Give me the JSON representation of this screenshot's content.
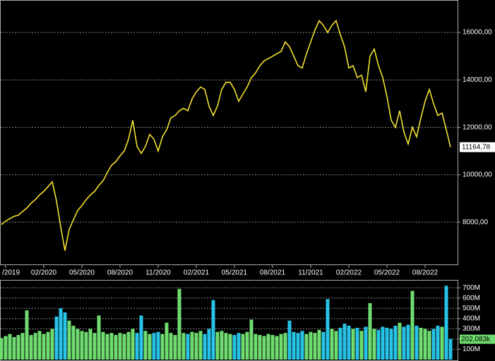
{
  "chart_data": [
    {
      "type": "line",
      "color": "#f2e22e",
      "categories": [
        null,
        "/2019",
        null,
        null,
        null,
        null,
        null,
        null,
        null,
        null,
        "02/2020",
        null,
        null,
        null,
        null,
        null,
        null,
        null,
        null,
        "05/2020",
        null,
        null,
        null,
        null,
        null,
        null,
        null,
        null,
        "08/2020",
        null,
        null,
        null,
        null,
        null,
        null,
        null,
        null,
        "11/2020",
        null,
        null,
        null,
        null,
        null,
        null,
        null,
        null,
        "02/2021",
        null,
        null,
        null,
        null,
        null,
        null,
        null,
        null,
        "05/2021",
        null,
        null,
        null,
        null,
        null,
        null,
        null,
        null,
        "08/2021",
        null,
        null,
        null,
        null,
        null,
        null,
        null,
        null,
        "11/2021",
        null,
        null,
        null,
        null,
        null,
        null,
        null,
        null,
        "02/2022",
        null,
        null,
        null,
        null,
        null,
        null,
        null,
        null,
        "05/2022",
        null,
        null,
        null,
        null,
        null,
        null,
        null,
        null,
        "08/2022",
        null,
        null,
        null,
        null,
        null,
        null
      ],
      "values": [
        7900,
        8050,
        8150,
        8250,
        8300,
        8450,
        8600,
        8800,
        8950,
        9150,
        9300,
        9500,
        9700,
        8900,
        7800,
        6800,
        7700,
        8100,
        8500,
        8700,
        8950,
        9150,
        9300,
        9550,
        9750,
        10100,
        10400,
        10550,
        10800,
        11000,
        11500,
        12300,
        11200,
        10900,
        11200,
        11700,
        11500,
        11000,
        11600,
        11900,
        12400,
        12500,
        12700,
        12800,
        12700,
        13200,
        13500,
        13700,
        13600,
        12900,
        12500,
        12900,
        13600,
        13900,
        13900,
        13600,
        13100,
        13400,
        13700,
        14100,
        14300,
        14600,
        14800,
        14900,
        15000,
        15100,
        15200,
        15600,
        15400,
        15000,
        14600,
        14500,
        15100,
        15600,
        16100,
        16500,
        16300,
        16000,
        16300,
        16500,
        15900,
        15400,
        14500,
        14600,
        14100,
        14200,
        13500,
        15000,
        15300,
        14600,
        14100,
        13300,
        12300,
        12000,
        12700,
        11800,
        11300,
        12000,
        11600,
        12400,
        13100,
        13600,
        13000,
        12500,
        12600,
        11900,
        11164.78
      ],
      "last_price": {
        "value": 11164.78,
        "label": "11164,78"
      },
      "ylim": [
        6280,
        17370
      ],
      "yticks": [
        {
          "value": 8000,
          "label": "8000,00"
        },
        {
          "value": 10000,
          "label": "10000,00"
        },
        {
          "value": 12000,
          "label": "12000,00"
        },
        {
          "value": 14000,
          "label": "14000,00"
        },
        {
          "value": 16000,
          "label": "16000,00"
        }
      ],
      "grid": true
    },
    {
      "type": "bar",
      "up_color": "#6fdc6f",
      "down_color": "#27c3e8",
      "values": [
        210000000,
        230000000,
        250000000,
        220000000,
        240000000,
        260000000,
        480000000,
        240000000,
        260000000,
        280000000,
        250000000,
        270000000,
        300000000,
        420000000,
        500000000,
        460000000,
        380000000,
        330000000,
        300000000,
        280000000,
        270000000,
        300000000,
        260000000,
        430000000,
        270000000,
        250000000,
        260000000,
        240000000,
        260000000,
        250000000,
        270000000,
        300000000,
        260000000,
        430000000,
        280000000,
        250000000,
        260000000,
        270000000,
        250000000,
        360000000,
        260000000,
        240000000,
        690000000,
        260000000,
        250000000,
        270000000,
        260000000,
        280000000,
        250000000,
        300000000,
        580000000,
        270000000,
        280000000,
        260000000,
        250000000,
        240000000,
        260000000,
        250000000,
        270000000,
        390000000,
        250000000,
        240000000,
        230000000,
        250000000,
        240000000,
        230000000,
        250000000,
        260000000,
        380000000,
        270000000,
        260000000,
        280000000,
        250000000,
        270000000,
        260000000,
        290000000,
        270000000,
        590000000,
        300000000,
        280000000,
        310000000,
        350000000,
        330000000,
        300000000,
        310000000,
        280000000,
        320000000,
        550000000,
        300000000,
        290000000,
        320000000,
        310000000,
        300000000,
        330000000,
        360000000,
        320000000,
        340000000,
        670000000,
        330000000,
        310000000,
        300000000,
        280000000,
        300000000,
        330000000,
        320000000,
        720000000,
        202083000
      ],
      "last_volume": {
        "value": 202083000,
        "label": "202,083k"
      },
      "ylim": [
        0,
        770000000
      ],
      "yticks": [
        {
          "value": 100000000,
          "label": "100M"
        },
        {
          "value": 200000000,
          "label": "200M"
        },
        {
          "value": 300000000,
          "label": "300M"
        },
        {
          "value": 400000000,
          "label": "400M"
        },
        {
          "value": 500000000,
          "label": "500M"
        },
        {
          "value": 600000000,
          "label": "600M"
        },
        {
          "value": 700000000,
          "label": "700M"
        }
      ],
      "grid": true
    }
  ]
}
